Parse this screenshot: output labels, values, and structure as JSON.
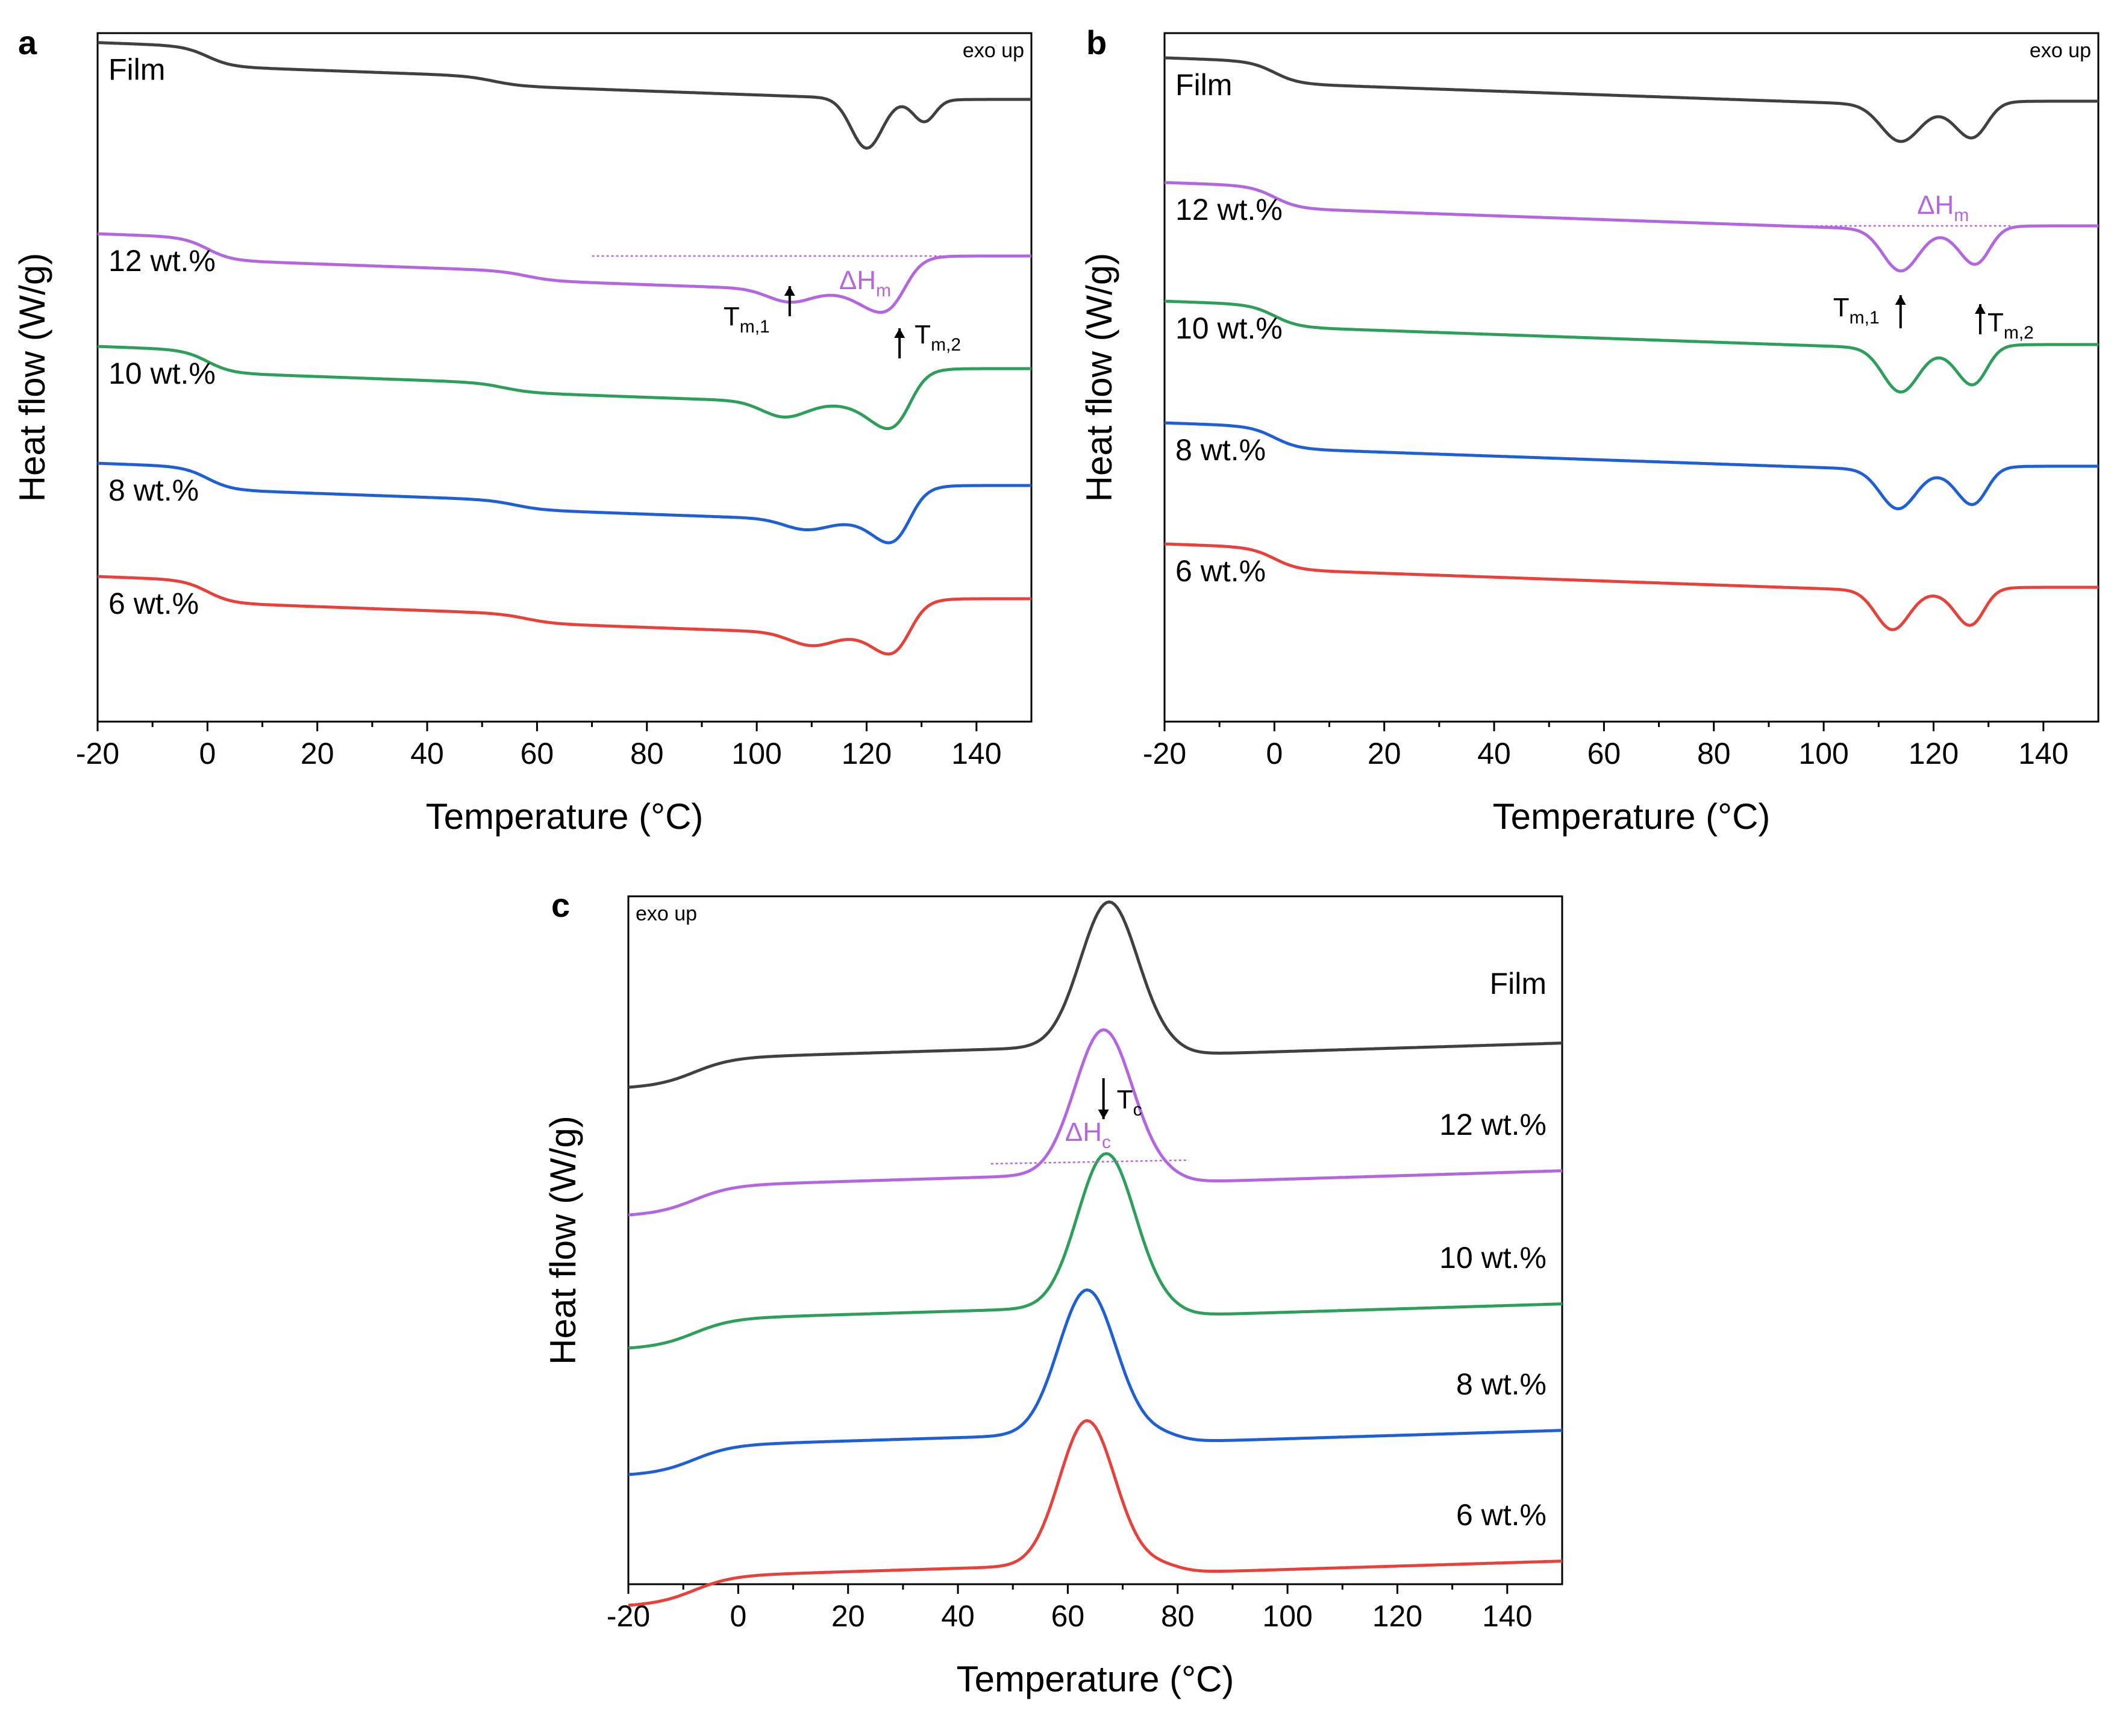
{
  "chart_data": [
    {
      "panel": "a",
      "type": "line",
      "xlabel": "Temperature (°C)",
      "ylabel": "Heat flow (W/g)",
      "xlim": [
        -20,
        150
      ],
      "xticks": [
        "-20",
        "0",
        "20",
        "40",
        "60",
        "80",
        "100",
        "120",
        "140"
      ],
      "note": "exo up",
      "note_position": "top-right",
      "label_side": "left",
      "series": [
        {
          "name": "Film",
          "label": "Film",
          "color": "#404040",
          "start": 2.2,
          "plateau": 1.8,
          "tg": 52,
          "end": 1.05,
          "dips": [
            [
              120,
              1.0,
              2.8
            ],
            [
              131,
              0.55,
              2.2
            ]
          ]
        },
        {
          "name": "12 wt.%",
          "label": "12 wt.%",
          "color": "#b266e0",
          "start": 2.2,
          "plateau": 1.75,
          "tg": 58,
          "end": 1.75,
          "dips": [
            [
              106,
              0.25,
              4
            ],
            [
              125,
              0.55,
              5
            ]
          ]
        },
        {
          "name": "10 wt.%",
          "label": "10 wt.%",
          "color": "#2e9e5b",
          "start": 2.2,
          "plateau": 1.75,
          "tg": 54,
          "end": 1.75,
          "dips": [
            [
              105,
              0.3,
              4
            ],
            [
              126,
              0.65,
              4.5
            ]
          ]
        },
        {
          "name": "8 wt.%",
          "label": "8 wt.%",
          "color": "#1f5fd6",
          "start": 2.2,
          "plateau": 1.75,
          "tg": 56,
          "end": 1.75,
          "dips": [
            [
              109,
              0.2,
              4
            ],
            [
              126,
              0.6,
              4
            ]
          ]
        },
        {
          "name": "6 wt.%",
          "label": "6 wt.%",
          "color": "#e8403a",
          "start": 2.2,
          "plateau": 1.75,
          "tg": 58,
          "end": 1.75,
          "dips": [
            [
              110,
              0.25,
              4
            ],
            [
              126,
              0.55,
              4
            ]
          ]
        }
      ],
      "annotations": {
        "dh": {
          "text": "ΔH",
          "sub": "m",
          "color": "#b266e0"
        },
        "t1": {
          "text": "T",
          "sub": "m,1",
          "x": 106,
          "arrow": "up"
        },
        "t2": {
          "text": "T",
          "sub": "m,2",
          "x": 126,
          "arrow": "up"
        }
      }
    },
    {
      "panel": "b",
      "type": "line",
      "xlabel": "Temperature (°C)",
      "ylabel": "Heat flow (W/g)",
      "xlim": [
        -20,
        150
      ],
      "xticks": [
        "-20",
        "0",
        "20",
        "40",
        "60",
        "80",
        "100",
        "120",
        "140"
      ],
      "note": "exo up",
      "note_position": "top-right",
      "label_side": "left",
      "series": [
        {
          "name": "Film",
          "label": "Film",
          "color": "#404040",
          "start": 2.2,
          "plateau": 1.75,
          "tg": 0,
          "end": 1.3,
          "dips": [
            [
              114,
              0.75,
              3.5
            ],
            [
              128,
              0.8,
              3.5
            ]
          ]
        },
        {
          "name": "12 wt.%",
          "label": "12 wt.%",
          "color": "#b266e0",
          "start": 2.2,
          "plateau": 1.75,
          "tg": 0,
          "end": 1.3,
          "dips": [
            [
              114,
              0.85,
              3.2
            ],
            [
              128.5,
              0.85,
              3.2
            ]
          ]
        },
        {
          "name": "10 wt.%",
          "label": "10 wt.%",
          "color": "#2e9e5b",
          "start": 2.2,
          "plateau": 1.75,
          "tg": 0,
          "end": 1.3,
          "dips": [
            [
              114,
              0.9,
              3.2
            ],
            [
              128,
              0.9,
              3.2
            ]
          ]
        },
        {
          "name": "8 wt.%",
          "label": "8 wt.%",
          "color": "#1f5fd6",
          "start": 2.2,
          "plateau": 1.75,
          "tg": 0,
          "end": 1.3,
          "dips": [
            [
              113.5,
              0.8,
              3.2
            ],
            [
              128,
              0.85,
              3.2
            ]
          ]
        },
        {
          "name": "6 wt.%",
          "label": "6 wt.%",
          "color": "#e8403a",
          "start": 2.2,
          "plateau": 1.75,
          "tg": 0,
          "end": 1.3,
          "dips": [
            [
              112.5,
              0.8,
              3.0
            ],
            [
              127.5,
              0.85,
              3.0
            ]
          ]
        }
      ],
      "annotations": {
        "dh": {
          "text": "ΔH",
          "sub": "m",
          "color": "#b266e0"
        },
        "t1": {
          "text": "T",
          "sub": "m,1",
          "x": 114,
          "arrow": "up"
        },
        "t2": {
          "text": "T",
          "sub": "m,2",
          "x": 128.5,
          "arrow": "up"
        }
      }
    },
    {
      "panel": "c",
      "type": "line",
      "xlabel": "Temperature (°C)",
      "ylabel": "Heat flow (W/g)",
      "xlim": [
        -20,
        150
      ],
      "xticks": [
        "-20",
        "0",
        "20",
        "40",
        "60",
        "80",
        "100",
        "120",
        "140"
      ],
      "note": "exo up",
      "note_position": "top-left",
      "label_side": "right",
      "series": [
        {
          "name": "Film",
          "label": "Film",
          "color": "#404040",
          "peak": [
            67.5,
            1.55,
            5.2
          ]
        },
        {
          "name": "12 wt.%",
          "label": "12 wt.%",
          "color": "#b266e0",
          "peak": [
            66.5,
            1.55,
            5.2
          ]
        },
        {
          "name": "10 wt.%",
          "label": "10 wt.%",
          "color": "#2e9e5b",
          "peak": [
            67,
            1.65,
            5.2
          ]
        },
        {
          "name": "8 wt.%",
          "label": "8 wt.%",
          "color": "#1f5fd6",
          "peak": [
            63.5,
            1.55,
            5.2
          ]
        },
        {
          "name": "6 wt.%",
          "label": "6 wt.%",
          "color": "#e8403a",
          "peak": [
            63.5,
            1.55,
            5.0
          ]
        }
      ],
      "annotations": {
        "dh": {
          "text": "ΔH",
          "sub": "c",
          "color": "#b266e0"
        },
        "tc": {
          "text": "T",
          "sub": "c",
          "x": 66.5,
          "arrow": "down"
        }
      }
    }
  ]
}
